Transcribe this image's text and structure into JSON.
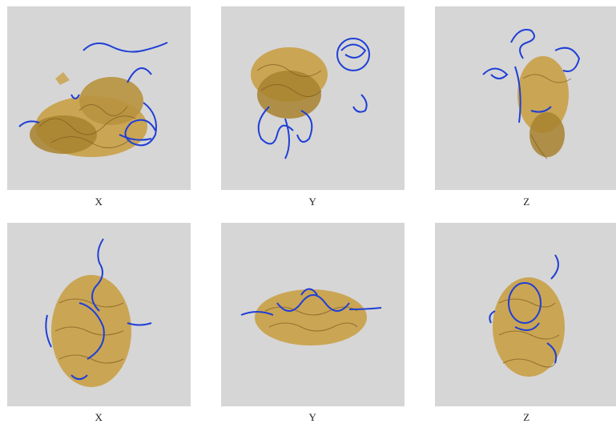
{
  "rows": [
    {
      "panels": [
        {
          "label": "X"
        },
        {
          "label": "Y"
        },
        {
          "label": "Z"
        }
      ]
    },
    {
      "panels": [
        {
          "label": "X"
        },
        {
          "label": "Y"
        },
        {
          "label": "Z"
        }
      ]
    }
  ],
  "colors": {
    "panel_background": "#d6d6d6",
    "protein_gold": "#c9a046",
    "protein_dark": "#7a5a1e",
    "rna_blue": "#1f3fd6"
  }
}
